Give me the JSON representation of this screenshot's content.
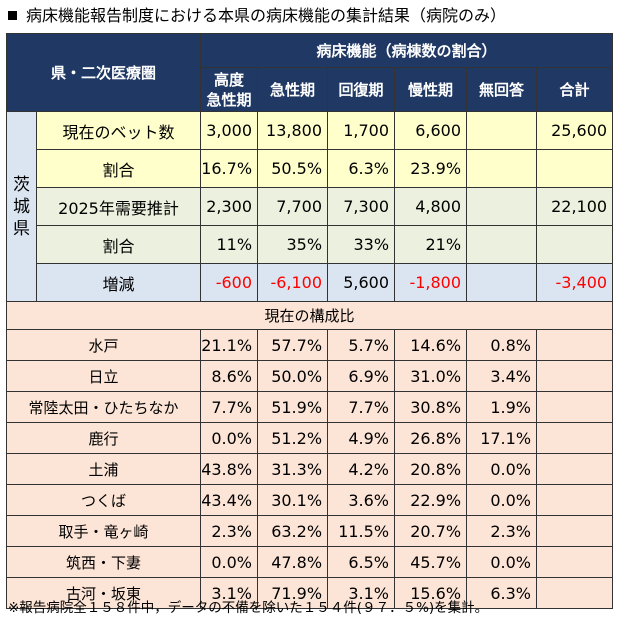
{
  "title": "病床機能報告制度における本県の病床機能の集計結果（病院のみ）",
  "header": {
    "region_label": "県・二次医療圏",
    "group_label": "病床機能（病棟数の割合）",
    "columns": [
      "高度\n急性期",
      "急性期",
      "回復期",
      "慢性期",
      "無回答",
      "合計"
    ]
  },
  "prefecture": {
    "name": "茨城県",
    "rows": [
      {
        "label": "現在のベット数",
        "values": [
          "3,000",
          "13,800",
          "1,700",
          "6,600",
          "",
          "25,600"
        ]
      },
      {
        "label": "割合",
        "values": [
          "16.7%",
          "50.5%",
          "6.3%",
          "23.9%",
          "",
          ""
        ]
      },
      {
        "label": "2025年需要推計",
        "values": [
          "2,300",
          "7,700",
          "7,300",
          "4,800",
          "",
          "22,100"
        ]
      },
      {
        "label": "割合",
        "values": [
          "11%",
          "35%",
          "33%",
          "21%",
          "",
          ""
        ]
      },
      {
        "label": "増減",
        "values": [
          "-600",
          "-6,100",
          "5,600",
          "-1,800",
          "",
          "-3,400"
        ]
      }
    ]
  },
  "section_label": "現在の構成比",
  "regions": [
    {
      "name": "水戸",
      "values": [
        "21.1%",
        "57.7%",
        "5.7%",
        "14.6%",
        "0.8%",
        ""
      ]
    },
    {
      "name": "日立",
      "values": [
        "8.6%",
        "50.0%",
        "6.9%",
        "31.0%",
        "3.4%",
        ""
      ]
    },
    {
      "name": "常陸太田・ひたちなか",
      "values": [
        "7.7%",
        "51.9%",
        "7.7%",
        "30.8%",
        "1.9%",
        ""
      ]
    },
    {
      "name": "鹿行",
      "values": [
        "0.0%",
        "51.2%",
        "4.9%",
        "26.8%",
        "17.1%",
        ""
      ]
    },
    {
      "name": "土浦",
      "values": [
        "43.8%",
        "31.3%",
        "4.2%",
        "20.8%",
        "0.0%",
        ""
      ]
    },
    {
      "name": "つくば",
      "values": [
        "43.4%",
        "30.1%",
        "3.6%",
        "22.9%",
        "0.0%",
        ""
      ]
    },
    {
      "name": "取手・竜ヶ崎",
      "values": [
        "2.3%",
        "63.2%",
        "11.5%",
        "20.7%",
        "2.3%",
        ""
      ]
    },
    {
      "name": "筑西・下妻",
      "values": [
        "0.0%",
        "47.8%",
        "6.5%",
        "45.7%",
        "0.0%",
        ""
      ]
    },
    {
      "name": "古河・坂東",
      "values": [
        "3.1%",
        "71.9%",
        "3.1%",
        "15.6%",
        "6.3%",
        ""
      ]
    }
  ],
  "footnote": "※報告病院全１５８件中，データの不備を除いた１５４件(９７．５%)を集計。",
  "colors": {
    "header_bg": "#1f3864",
    "yellow_row": "#ffffcc",
    "green_row": "#ebf1de",
    "blue_row": "#dbe5f1",
    "peach_row": "#fce4d6",
    "negative": "#ff0000"
  }
}
